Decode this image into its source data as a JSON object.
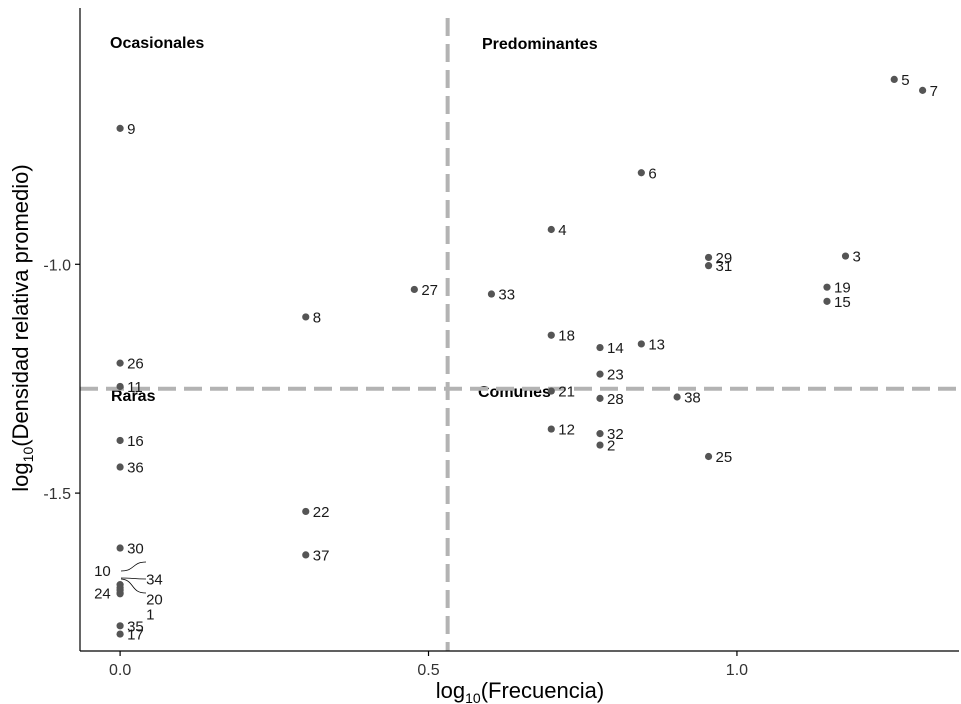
{
  "chart_data": {
    "type": "scatter",
    "xlabel_main": "log",
    "xlabel_sub": "10",
    "xlabel_rest": "(Frecuencia)",
    "ylabel_main": "log",
    "ylabel_sub": "10",
    "ylabel_rest": "(Densidad relativa promedio)",
    "xlim": [
      -0.065,
      1.36
    ],
    "ylim": [
      -1.845,
      -0.44
    ],
    "x_ticks": [
      0.0,
      0.5,
      1.0
    ],
    "x_tick_labels": [
      "0.0",
      "0.5",
      "1.0"
    ],
    "y_ticks": [
      -1.0,
      -1.5
    ],
    "y_tick_labels": [
      "-1.0",
      "-1.5"
    ],
    "threshold_x": 0.531,
    "threshold_y": -1.272,
    "quadrant_labels": {
      "top_left": "Ocasionales",
      "top_right": "Predominantes",
      "bottom_left": "Raras",
      "bottom_right": "Comunes"
    },
    "points": [
      {
        "label": "1",
        "x": 0.0,
        "y": -1.72
      },
      {
        "label": "2",
        "x": 0.778,
        "y": -1.395
      },
      {
        "label": "3",
        "x": 1.176,
        "y": -0.982
      },
      {
        "label": "4",
        "x": 0.699,
        "y": -0.924
      },
      {
        "label": "5",
        "x": 1.255,
        "y": -0.596
      },
      {
        "label": "6",
        "x": 0.845,
        "y": -0.8
      },
      {
        "label": "7",
        "x": 1.301,
        "y": -0.62
      },
      {
        "label": "8",
        "x": 0.301,
        "y": -1.115
      },
      {
        "label": "9",
        "x": 0.0,
        "y": -0.703
      },
      {
        "label": "10",
        "x": 0.0,
        "y": -1.7
      },
      {
        "label": "11",
        "x": 0.0,
        "y": -1.267
      },
      {
        "label": "12",
        "x": 0.699,
        "y": -1.36
      },
      {
        "label": "13",
        "x": 0.845,
        "y": -1.174
      },
      {
        "label": "14",
        "x": 0.778,
        "y": -1.182
      },
      {
        "label": "15",
        "x": 1.146,
        "y": -1.081
      },
      {
        "label": "16",
        "x": 0.0,
        "y": -1.385
      },
      {
        "label": "17",
        "x": 0.0,
        "y": -1.808
      },
      {
        "label": "18",
        "x": 0.699,
        "y": -1.155
      },
      {
        "label": "19",
        "x": 1.146,
        "y": -1.05
      },
      {
        "label": "20",
        "x": 0.0,
        "y": -1.718
      },
      {
        "label": "21",
        "x": 0.699,
        "y": -1.277
      },
      {
        "label": "22",
        "x": 0.301,
        "y": -1.54
      },
      {
        "label": "23",
        "x": 0.778,
        "y": -1.24
      },
      {
        "label": "24",
        "x": 0.0,
        "y": -1.712
      },
      {
        "label": "25",
        "x": 0.954,
        "y": -1.42
      },
      {
        "label": "26",
        "x": 0.0,
        "y": -1.216
      },
      {
        "label": "27",
        "x": 0.477,
        "y": -1.055
      },
      {
        "label": "28",
        "x": 0.778,
        "y": -1.293
      },
      {
        "label": "29",
        "x": 0.954,
        "y": -0.985
      },
      {
        "label": "30",
        "x": 0.0,
        "y": -1.62
      },
      {
        "label": "31",
        "x": 0.954,
        "y": -1.003
      },
      {
        "label": "32",
        "x": 0.778,
        "y": -1.37
      },
      {
        "label": "33",
        "x": 0.602,
        "y": -1.065
      },
      {
        "label": "34",
        "x": 0.0,
        "y": -1.707
      },
      {
        "label": "35",
        "x": 0.0,
        "y": -1.79
      },
      {
        "label": "36",
        "x": 0.0,
        "y": -1.443
      },
      {
        "label": "37",
        "x": 0.301,
        "y": -1.635
      },
      {
        "label": "38",
        "x": 0.903,
        "y": -1.29
      }
    ],
    "grid": false,
    "colors": {
      "points": "#555555",
      "threshold": "#b3b3b3",
      "text": "#000000"
    }
  }
}
